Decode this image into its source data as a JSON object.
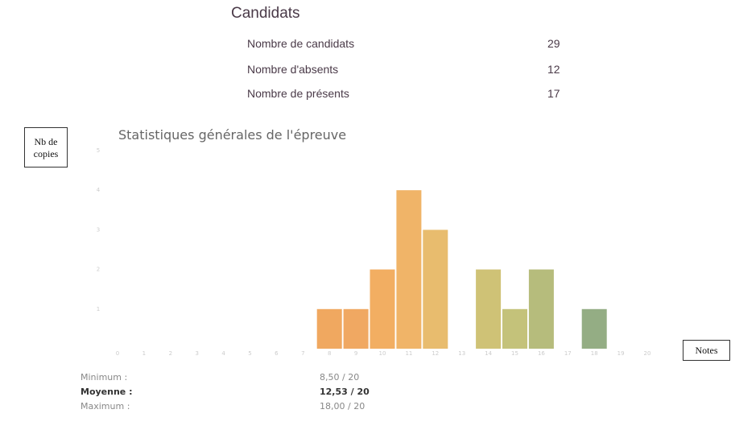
{
  "candidats": {
    "title": "Candidats",
    "rows": [
      {
        "label": "Nombre de candidats",
        "value": 29
      },
      {
        "label": "Nombre d'absents",
        "value": 12
      },
      {
        "label": "Nombre de présents",
        "value": 17
      }
    ]
  },
  "annotations": {
    "y_axis": "Nb de copies",
    "x_axis": "Notes"
  },
  "chart_data": {
    "type": "bar",
    "title": "Statistiques générales de l'épreuve",
    "categories": [
      "0",
      "1",
      "2",
      "3",
      "4",
      "5",
      "6",
      "7",
      "8",
      "9",
      "10",
      "11",
      "12",
      "13",
      "14",
      "15",
      "16",
      "17",
      "18",
      "19",
      "20"
    ],
    "values": [
      0,
      0,
      0,
      0,
      0,
      0,
      0,
      0,
      1,
      1,
      2,
      4,
      3,
      0,
      2,
      1,
      2,
      0,
      1,
      0,
      0
    ],
    "colors": [
      "#f0a060",
      "#f0a060",
      "#f0a060",
      "#f0a060",
      "#f0a060",
      "#f0a060",
      "#f0a060",
      "#f0a060",
      "#f0a860",
      "#f0a862",
      "#f2ae62",
      "#f0b468",
      "#e8bc6e",
      "#dcc072",
      "#cfc276",
      "#c4c27a",
      "#b6bc7c",
      "#a8b47e",
      "#94ad84",
      "#88a888",
      "#88a888"
    ],
    "ylim": [
      0,
      5
    ],
    "yticks": [
      1,
      2,
      3,
      4,
      5
    ],
    "grid": false
  },
  "stats": {
    "rows": [
      {
        "label": "Minimum :",
        "value": "8,50 / 20"
      },
      {
        "label": "Moyenne :",
        "value": "12,53 / 20"
      },
      {
        "label": "Maximum :",
        "value": "18,00 / 20"
      }
    ]
  }
}
